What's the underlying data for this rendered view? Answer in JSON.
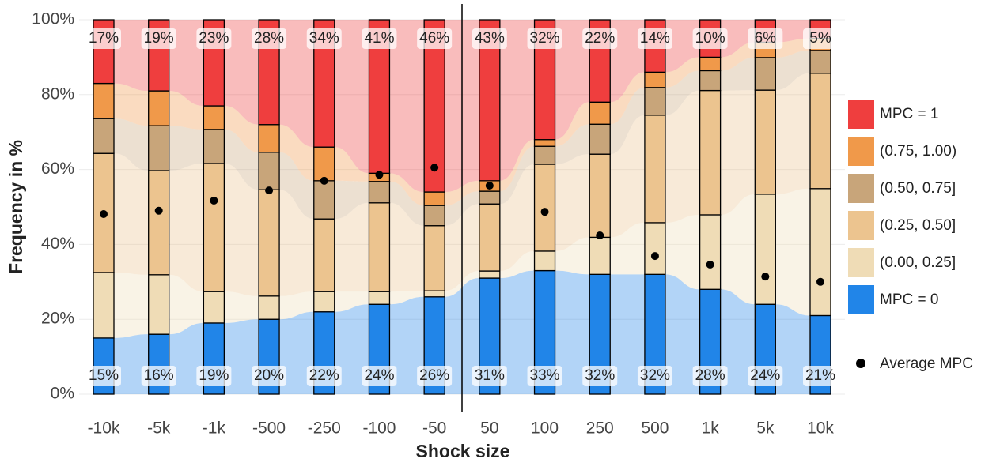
{
  "chart_data": {
    "type": "bar",
    "stacked": true,
    "x_label": "Shock size",
    "y_label": "Frequency in %",
    "categories": [
      "-10k",
      "-5k",
      "-1k",
      "-500",
      "-250",
      "-100",
      "-50",
      "50",
      "100",
      "250",
      "500",
      "1k",
      "5k",
      "10k"
    ],
    "ylim": [
      0,
      100
    ],
    "yticks": [
      {
        "value": 0,
        "label": "0%"
      },
      {
        "value": 20,
        "label": "20%"
      },
      {
        "value": 40,
        "label": "40%"
      },
      {
        "value": 60,
        "label": "60%"
      },
      {
        "value": 80,
        "label": "80%"
      },
      {
        "value": 100,
        "label": "100%"
      }
    ],
    "grid": true,
    "legend": "right",
    "series": [
      {
        "name": "MPC = 0",
        "color": "#2185e8",
        "values": [
          15,
          16,
          19,
          20,
          22,
          24,
          26,
          31,
          33,
          32,
          32,
          28,
          24,
          21
        ],
        "value_labels": [
          "15%",
          "16%",
          "19%",
          "20%",
          "22%",
          "24%",
          "26%",
          "31%",
          "33%",
          "32%",
          "32%",
          "28%",
          "24%",
          "21%"
        ]
      },
      {
        "name": "(0.00, 0.25]",
        "color": "#efdcb6",
        "values": [
          17.5,
          15.9,
          8.4,
          6.2,
          5.4,
          3.4,
          1.6,
          1.9,
          5.2,
          9.9,
          13.8,
          19.9,
          29.4,
          33.9
        ]
      },
      {
        "name": "(0.25, 0.50]",
        "color": "#ecc48f",
        "values": [
          31.8,
          27.8,
          34.2,
          28.4,
          19.4,
          23.7,
          17.4,
          17.9,
          23.2,
          22.2,
          28.7,
          33.2,
          27.8,
          30.8
        ]
      },
      {
        "name": "(0.50, 0.75]",
        "color": "#c8a57a",
        "values": [
          9.3,
          12,
          9.1,
          10,
          10.2,
          5.7,
          5.4,
          3.4,
          4.8,
          8,
          7.4,
          5.3,
          8.7,
          6.1
        ]
      },
      {
        "name": "(0.75, 1.00)",
        "color": "#f0994a",
        "values": [
          9.4,
          9.3,
          6.3,
          7.4,
          9,
          2.2,
          3.6,
          2.8,
          1.8,
          5.9,
          4.1,
          3.6,
          4.1,
          3.2
        ]
      },
      {
        "name": "MPC = 1",
        "color": "#ef3e3e",
        "values": [
          17,
          19,
          23,
          28,
          34,
          41,
          46,
          43,
          32,
          22,
          14,
          10,
          6,
          5
        ],
        "value_labels": [
          "17%",
          "19%",
          "23%",
          "28%",
          "34%",
          "41%",
          "46%",
          "43%",
          "32%",
          "22%",
          "14%",
          "10%",
          "6%",
          "5%"
        ]
      }
    ],
    "points": {
      "name": "Average MPC",
      "color": "#000000",
      "values": [
        48.1,
        49,
        51.7,
        54.4,
        57,
        58.6,
        60.5,
        55.7,
        48.7,
        42.4,
        36.9,
        34.6,
        31.4,
        30
      ]
    }
  }
}
